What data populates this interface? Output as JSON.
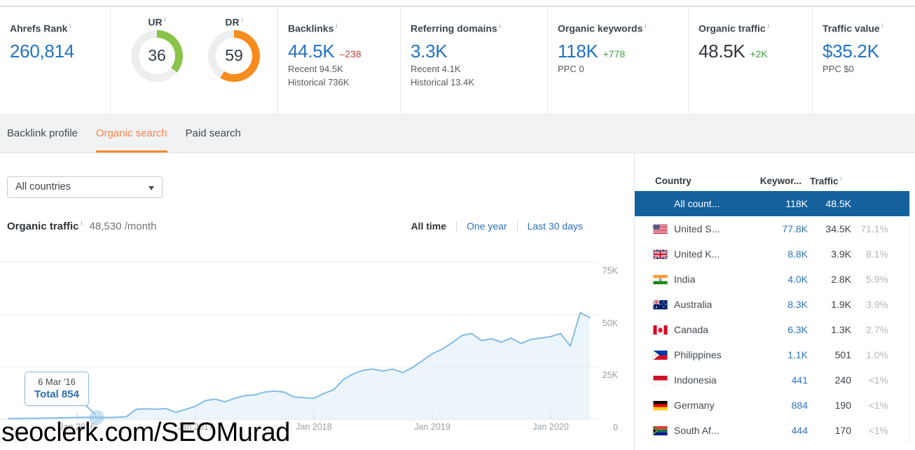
{
  "metrics": {
    "ahrefs_rank": {
      "label": "Ahrefs Rank",
      "value": "260,814"
    },
    "ur": {
      "label": "UR",
      "value": 36
    },
    "dr": {
      "label": "DR",
      "value": 59
    },
    "backlinks": {
      "label": "Backlinks",
      "value": "44.5K",
      "delta": "–238",
      "sub1": "Recent 94.5K",
      "sub2": "Historical 736K"
    },
    "referring_domains": {
      "label": "Referring domains",
      "value": "3.3K",
      "sub1": "Recent 4.1K",
      "sub2": "Historical 13.4K"
    },
    "organic_keywords": {
      "label": "Organic keywords",
      "value": "118K",
      "delta": "+778",
      "sub1": "PPC 0"
    },
    "organic_traffic": {
      "label": "Organic traffic",
      "value": "48.5K",
      "delta": "+2K"
    },
    "traffic_value": {
      "label": "Traffic value",
      "value": "$35.2K",
      "sub1": "PPC $0"
    }
  },
  "tabs": [
    {
      "label": "Backlink profile",
      "active": false
    },
    {
      "label": "Organic search",
      "active": true
    },
    {
      "label": "Paid search",
      "active": false
    }
  ],
  "filters": {
    "country_dropdown": "All countries",
    "time_ranges": [
      {
        "label": "All time",
        "active": true
      },
      {
        "label": "One year",
        "active": false
      },
      {
        "label": "Last 30 days",
        "active": false
      }
    ]
  },
  "chart_header": {
    "title": "Organic traffic",
    "value": "48,530 /month"
  },
  "chart_data": {
    "type": "area",
    "title": "Organic traffic",
    "current": "48,530 /month",
    "ylabel": "Organic traffic",
    "ylim": [
      0,
      75000
    ],
    "grid": true,
    "y_tick_labels": [
      "75K",
      "50K",
      "25K",
      "0"
    ],
    "x_tick_labels": [
      "Jan 2016",
      "Jan 2017",
      "Jan 2018",
      "Jan 2019",
      "Jan 2020"
    ],
    "x_tick_indexes": [
      7,
      19,
      31,
      43,
      55
    ],
    "points_format": "[month, organic_traffic]",
    "points": [
      [
        "2015-06",
        300
      ],
      [
        "2015-07",
        350
      ],
      [
        "2015-08",
        400
      ],
      [
        "2015-09",
        450
      ],
      [
        "2015-10",
        550
      ],
      [
        "2015-11",
        650
      ],
      [
        "2015-12",
        750
      ],
      [
        "2016-01",
        850
      ],
      [
        "2016-02",
        950
      ],
      [
        "2016-03",
        854
      ],
      [
        "2016-04",
        800
      ],
      [
        "2016-05",
        900
      ],
      [
        "2016-06",
        1200
      ],
      [
        "2016-07",
        4800
      ],
      [
        "2016-08",
        5000
      ],
      [
        "2016-09",
        4800
      ],
      [
        "2016-10",
        5100
      ],
      [
        "2016-11",
        3300
      ],
      [
        "2016-12",
        4700
      ],
      [
        "2017-01",
        6200
      ],
      [
        "2017-02",
        8900
      ],
      [
        "2017-03",
        9600
      ],
      [
        "2017-04",
        8300
      ],
      [
        "2017-05",
        10000
      ],
      [
        "2017-06",
        11300
      ],
      [
        "2017-07",
        11600
      ],
      [
        "2017-08",
        13000
      ],
      [
        "2017-09",
        13500
      ],
      [
        "2017-10",
        13000
      ],
      [
        "2017-11",
        10600
      ],
      [
        "2017-12",
        10300
      ],
      [
        "2018-01",
        10000
      ],
      [
        "2018-02",
        12300
      ],
      [
        "2018-03",
        14000
      ],
      [
        "2018-04",
        19000
      ],
      [
        "2018-05",
        21700
      ],
      [
        "2018-06",
        23400
      ],
      [
        "2018-07",
        24000
      ],
      [
        "2018-08",
        23000
      ],
      [
        "2018-09",
        24000
      ],
      [
        "2018-10",
        22300
      ],
      [
        "2018-11",
        24700
      ],
      [
        "2018-12",
        28000
      ],
      [
        "2019-01",
        31300
      ],
      [
        "2019-02",
        33500
      ],
      [
        "2019-03",
        36500
      ],
      [
        "2019-04",
        40000
      ],
      [
        "2019-05",
        41000
      ],
      [
        "2019-06",
        37500
      ],
      [
        "2019-07",
        38500
      ],
      [
        "2019-08",
        36800
      ],
      [
        "2019-09",
        38800
      ],
      [
        "2019-10",
        36200
      ],
      [
        "2019-11",
        38200
      ],
      [
        "2019-12",
        38800
      ],
      [
        "2020-01",
        39500
      ],
      [
        "2020-02",
        41000
      ],
      [
        "2020-03",
        35000
      ],
      [
        "2020-04",
        51000
      ],
      [
        "2020-04-15",
        48500
      ]
    ],
    "tooltip": {
      "date": "6 Mar '16",
      "label": "Total 854",
      "value": 854,
      "point_index": 9
    }
  },
  "country_table": {
    "columns": [
      "Country",
      "Keywor...",
      "Traffic"
    ],
    "rows": [
      {
        "country": "All count...",
        "flag": null,
        "keywords": "118K",
        "traffic": "48.5K",
        "percent": "",
        "selected": true
      },
      {
        "country": "United S...",
        "flag": "us",
        "keywords": "77.8K",
        "traffic": "34.5K",
        "percent": "71.1%",
        "selected": false
      },
      {
        "country": "United K...",
        "flag": "gb",
        "keywords": "8.8K",
        "traffic": "3.9K",
        "percent": "8.1%",
        "selected": false
      },
      {
        "country": "India",
        "flag": "in",
        "keywords": "4.0K",
        "traffic": "2.8K",
        "percent": "5.9%",
        "selected": false
      },
      {
        "country": "Australia",
        "flag": "au",
        "keywords": "8.3K",
        "traffic": "1.9K",
        "percent": "3.9%",
        "selected": false
      },
      {
        "country": "Canada",
        "flag": "ca",
        "keywords": "6.3K",
        "traffic": "1.3K",
        "percent": "2.7%",
        "selected": false
      },
      {
        "country": "Philippines",
        "flag": "ph",
        "keywords": "1.1K",
        "traffic": "501",
        "percent": "1.0%",
        "selected": false
      },
      {
        "country": "Indonesia",
        "flag": "id",
        "keywords": "441",
        "traffic": "240",
        "percent": "<1%",
        "selected": false
      },
      {
        "country": "Germany",
        "flag": "de",
        "keywords": "884",
        "traffic": "190",
        "percent": "<1%",
        "selected": false
      },
      {
        "country": "South Af...",
        "flag": "za",
        "keywords": "444",
        "traffic": "170",
        "percent": "<1%",
        "selected": false
      }
    ]
  },
  "watermark": "seoclerk.com/SEOMurad",
  "colors": {
    "accent_orange": "#f8854d",
    "tab_underline_orange": "#f8882f",
    "value_blue": "#2273c4",
    "link_blue": "#2b72bb",
    "negative_red": "#b8473f",
    "positive_green": "#3f9e47",
    "selected_row_blue": "#15619d",
    "ur_gauge_green": "#8bc34a",
    "dr_gauge_orange": "#f68b1e",
    "chart_line_blue": "#85bce4",
    "chart_fill_blue": "#ddecf9"
  }
}
